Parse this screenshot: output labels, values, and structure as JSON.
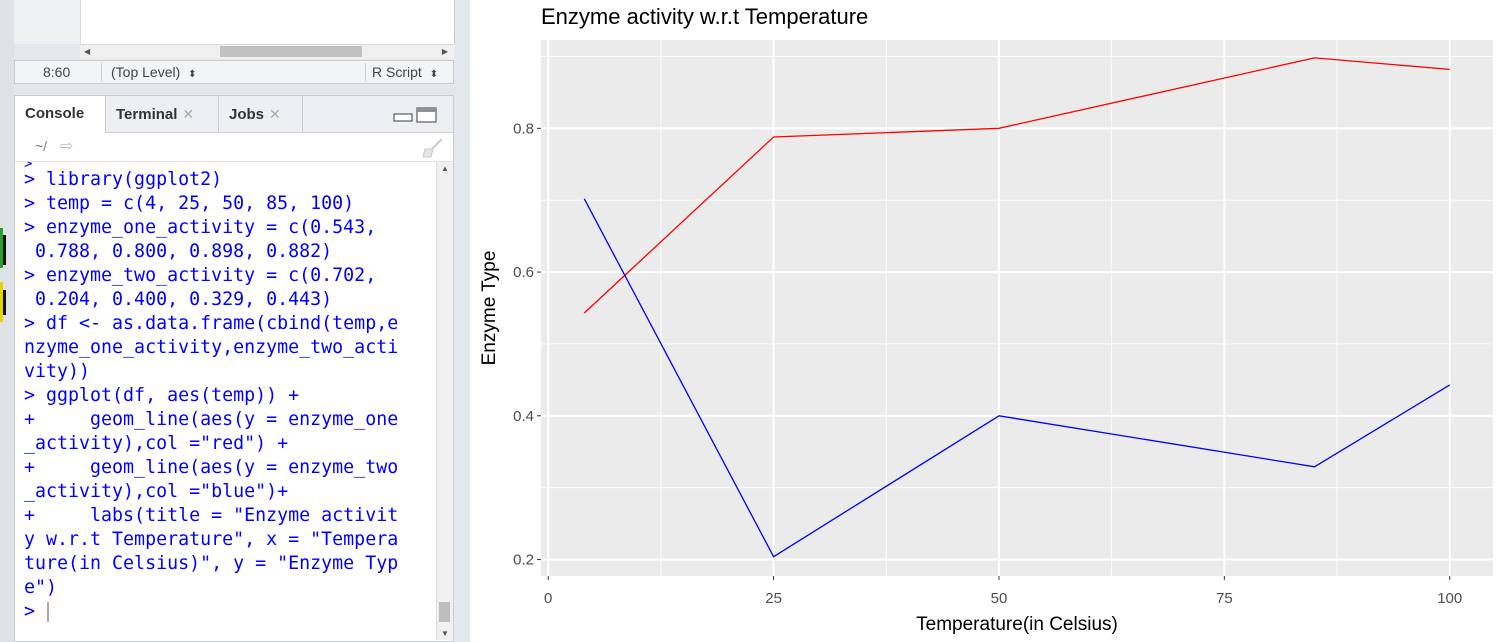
{
  "editor": {
    "cursor_pos": "8:60",
    "scope": "(Top Level)",
    "file_type": "R Script"
  },
  "console_panel": {
    "tabs": [
      {
        "label": "Console",
        "active": true,
        "closable": false
      },
      {
        "label": "Terminal",
        "active": false,
        "closable": true
      },
      {
        "label": "Jobs",
        "active": false,
        "closable": true
      }
    ],
    "working_dir": "~/",
    "lines": [
      "> library(ggplot2)",
      "> temp = c(4, 25, 50, 85, 100)",
      "> enzyme_one_activity = c(0.543,",
      " 0.788, 0.800, 0.898, 0.882)",
      "> enzyme_two_activity = c(0.702,",
      " 0.204, 0.400, 0.329, 0.443)",
      "> df <- as.data.frame(cbind(temp,e",
      "nzyme_one_activity,enzyme_two_acti",
      "vity))",
      "> ggplot(df, aes(temp)) +",
      "+     geom_line(aes(y = enzyme_one",
      "_activity),col =\"red\") +",
      "+     geom_line(aes(y = enzyme_two",
      "_activity),col =\"blue\")+",
      "+     labs(title = \"Enzyme activit",
      "y w.r.t Temperature\", x = \"Tempera",
      "ture(in Celsius)\", y = \"Enzyme Typ",
      "e\")"
    ],
    "prompt": ">"
  },
  "colors": {
    "panel_bg": "#ebebeb",
    "grid": "#ffffff",
    "series_one": "#ff0000",
    "series_two": "#0000ff",
    "console_text": "#0000ff"
  },
  "chart_data": {
    "type": "line",
    "title": "Enzyme activity w.r.t Temperature",
    "xlabel": "Temperature(in Celsius)",
    "ylabel": "Enzyme Type",
    "x": [
      4,
      25,
      50,
      85,
      100
    ],
    "series": [
      {
        "values": [
          0.543,
          0.788,
          0.8,
          0.898,
          0.882
        ],
        "color": "#ff0000"
      },
      {
        "values": [
          0.702,
          0.204,
          0.4,
          0.329,
          0.443
        ],
        "color": "#0000ff"
      }
    ],
    "xlim": [
      -0.8,
      104.8
    ],
    "ylim": [
      0.1771,
      0.9229
    ],
    "x_ticks": [
      0,
      25,
      50,
      75,
      100
    ],
    "x_tick_labels": [
      "0",
      "25",
      "50",
      "75",
      "100"
    ],
    "y_ticks": [
      0.2,
      0.4,
      0.6,
      0.8
    ],
    "y_tick_labels": [
      "0.2",
      "0.4",
      "0.6",
      "0.8"
    ],
    "grid": true,
    "legend": "none"
  }
}
